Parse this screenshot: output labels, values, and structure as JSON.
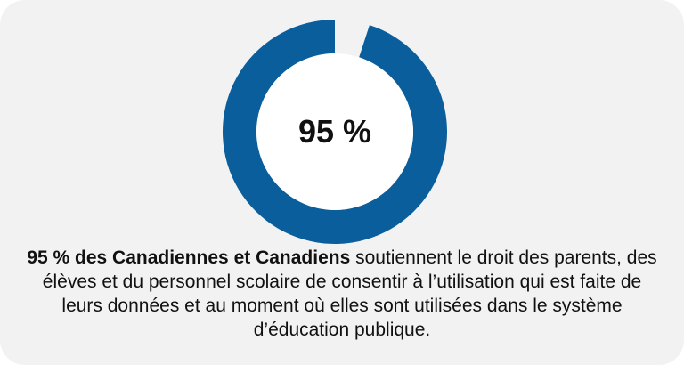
{
  "colors": {
    "background": "#f2f2f2",
    "ring": "#0a5e9c",
    "center": "#ffffff",
    "text": "#111111"
  },
  "chart_data": {
    "type": "pie",
    "variant": "donut",
    "values": [
      95,
      5
    ],
    "center_label": "95 %",
    "title": ""
  },
  "caption": {
    "bold": "95 % des Canadiennes et Canadiens",
    "rest": " soutiennent le droit des parents, des élèves et du personnel scolaire de consentir à l’utilisation qui est faite de leurs données et au moment où elles sont utilisées dans le système d’éducation publique."
  }
}
